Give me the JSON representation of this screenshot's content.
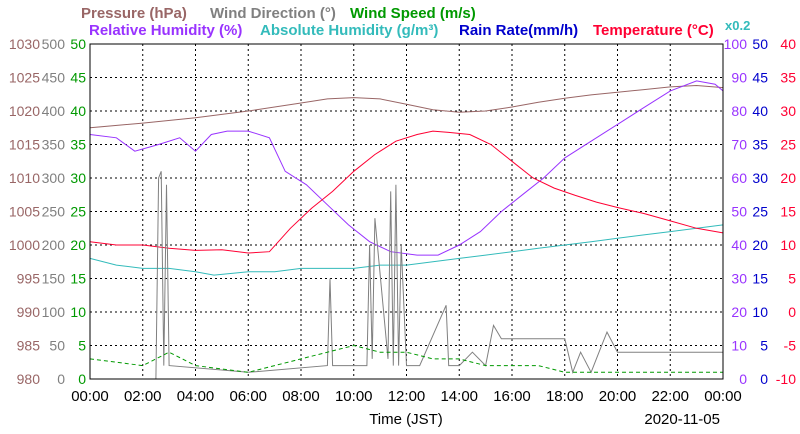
{
  "chart_data": {
    "type": "line",
    "legend": {
      "row1": [
        {
          "text": "Pressure (hPa)",
          "color": "#996666"
        },
        {
          "text": "Wind Direction (°)",
          "color": "#808080"
        },
        {
          "text": "Wind Speed (m/s)",
          "color": "#009900"
        }
      ],
      "row2": [
        {
          "text": "Relative Humidity (%)",
          "color": "#9933ff"
        },
        {
          "text": "Absolute Humidity (g/m³)",
          "color": "#33bbbb"
        },
        {
          "text": "Rain Rate(mm/h)",
          "color": "#0000cc"
        },
        {
          "text": "Temperature (°C)",
          "color": "#ff0033"
        }
      ],
      "scale_note": "x0.2"
    },
    "xlabel": "Time (JST)",
    "date": "2020-11-05",
    "x_ticks": [
      "00:00",
      "02:00",
      "04:00",
      "06:00",
      "08:00",
      "10:00",
      "12:00",
      "14:00",
      "16:00",
      "18:00",
      "20:00",
      "22:00",
      "00:00"
    ],
    "xlim": [
      0,
      24
    ],
    "axes": {
      "pressure": {
        "color": "#996666",
        "ticks": [
          "1030",
          "1025",
          "1020",
          "1015",
          "1010",
          "1005",
          "1000",
          "995",
          "990",
          "985",
          "980"
        ],
        "ylim": [
          980,
          1030
        ]
      },
      "wind_direction": {
        "color": "#808080",
        "ticks": [
          "500",
          "450",
          "400",
          "350",
          "300",
          "250",
          "200",
          "150",
          "100",
          "50",
          "0"
        ],
        "ylim": [
          0,
          500
        ]
      },
      "wind_speed": {
        "color": "#009900",
        "ticks": [
          "50",
          "45",
          "40",
          "35",
          "30",
          "25",
          "20",
          "15",
          "10",
          "5",
          "0"
        ],
        "ylim": [
          0,
          50
        ]
      },
      "humidity": {
        "color": "#9933ff",
        "ticks": [
          "100",
          "90",
          "80",
          "70",
          "60",
          "50",
          "40",
          "30",
          "20",
          "10",
          "0"
        ],
        "ylim": [
          0,
          100
        ]
      },
      "rain_rate": {
        "color": "#0000cc",
        "ticks": [
          "50",
          "45",
          "40",
          "35",
          "30",
          "25",
          "20",
          "15",
          "10",
          "5",
          "0"
        ],
        "ylim": [
          0,
          50
        ]
      },
      "temperature": {
        "color": "#ff0033",
        "ticks": [
          "40",
          "35",
          "30",
          "25",
          "20",
          "15",
          "10",
          "5",
          "0",
          "-5",
          "-10"
        ],
        "ylim": [
          -10,
          40
        ]
      }
    },
    "grid": true,
    "series": [
      {
        "name": "Pressure (hPa)",
        "axis": "pressure",
        "color": "#996666",
        "x": [
          0,
          2,
          4,
          6,
          8,
          9,
          10,
          11,
          12,
          13,
          14,
          15,
          16,
          17,
          18,
          19,
          20,
          21,
          22,
          23,
          24
        ],
        "y": [
          1017.5,
          1018.2,
          1019.0,
          1020.0,
          1021.2,
          1021.8,
          1022.0,
          1021.8,
          1021.0,
          1020.2,
          1019.8,
          1020.0,
          1020.6,
          1021.3,
          1021.9,
          1022.4,
          1022.8,
          1023.2,
          1023.6,
          1023.8,
          1023.5
        ]
      },
      {
        "name": "Relative Humidity (%)",
        "axis": "humidity",
        "color": "#9933ff",
        "x": [
          0,
          1,
          1.7,
          2.6,
          3.4,
          4,
          4.6,
          5.2,
          6,
          6.8,
          7.4,
          8.2,
          9,
          9.8,
          10.6,
          11.4,
          12.4,
          13.2,
          14,
          14.8,
          15.6,
          16.4,
          17.2,
          18,
          19,
          20,
          21,
          22,
          23,
          23.7,
          24
        ],
        "y": [
          73,
          72,
          68,
          70,
          72,
          68,
          73,
          74,
          74,
          72,
          62,
          58,
          52,
          46,
          41,
          38,
          37,
          37,
          40,
          44,
          50,
          55,
          60,
          66,
          71,
          76,
          81,
          86,
          89,
          88,
          86
        ]
      },
      {
        "name": "Absolute Humidity (g/m³)",
        "axis": "humidity",
        "color": "#33bbbb",
        "x": [
          0,
          1,
          2,
          3,
          4,
          4.7,
          6,
          7,
          8,
          9,
          10,
          11,
          12,
          13,
          14,
          15,
          16,
          17,
          18,
          19,
          20,
          21,
          22,
          23,
          24
        ],
        "y": [
          36,
          34,
          33,
          33,
          32,
          31,
          32,
          32,
          33,
          33,
          33,
          34,
          34,
          35,
          36,
          37,
          38,
          39,
          40,
          41,
          42,
          43,
          44,
          45,
          46
        ]
      },
      {
        "name": "Temperature (°C)",
        "axis": "temperature",
        "color": "#ff0033",
        "x": [
          0,
          1,
          2,
          3,
          4,
          5,
          6,
          6.8,
          7.6,
          8.4,
          9.2,
          10,
          10.8,
          11.6,
          12.4,
          13,
          13.6,
          14.4,
          15.2,
          16,
          16.8,
          17.6,
          18.4,
          19.2,
          20,
          21,
          22,
          23,
          24
        ],
        "y": [
          10.5,
          10,
          10,
          9.5,
          9.2,
          9.3,
          8.8,
          9,
          12.5,
          15.5,
          18,
          21,
          23.5,
          25.5,
          26.5,
          27,
          26.8,
          26.5,
          25,
          22.5,
          20,
          18.5,
          17.4,
          16.4,
          15.6,
          14.7,
          13.6,
          12.5,
          11.8
        ]
      },
      {
        "name": "Wind Direction (°)",
        "axis": "wind_direction",
        "color": "#808080",
        "x": [
          0,
          2.5,
          2.6,
          2.7,
          2.8,
          2.9,
          3,
          6,
          9,
          9.1,
          9.2,
          9.3,
          10.5,
          10.6,
          10.7,
          10.8,
          11.3,
          11.4,
          11.5,
          11.6,
          11.7,
          11.8,
          12,
          12.5,
          13.5,
          13.6,
          13.7,
          14,
          14.5,
          15,
          15.3,
          15.6,
          16,
          18,
          18.3,
          18.6,
          19,
          19.3,
          19.6,
          20,
          23,
          24
        ],
        "y": [
          0,
          0,
          300,
          310,
          20,
          290,
          20,
          10,
          20,
          150,
          20,
          20,
          20,
          200,
          30,
          240,
          30,
          280,
          20,
          290,
          20,
          200,
          20,
          20,
          110,
          20,
          20,
          20,
          40,
          20,
          80,
          60,
          60,
          60,
          10,
          40,
          10,
          40,
          70,
          40,
          40,
          40
        ]
      },
      {
        "name": "Wind Speed (m/s)",
        "axis": "wind_speed",
        "color": "#009900",
        "x": [
          0,
          2,
          3,
          4,
          6,
          7,
          8,
          9,
          10,
          11,
          12,
          13,
          14,
          15,
          16,
          17,
          18,
          19,
          20,
          21,
          22,
          23,
          24
        ],
        "y": [
          3,
          2,
          4,
          2,
          1,
          2,
          3,
          4,
          5,
          4,
          4,
          3,
          3,
          2,
          2,
          2,
          1,
          1,
          1,
          1,
          1,
          1,
          1
        ]
      }
    ]
  }
}
